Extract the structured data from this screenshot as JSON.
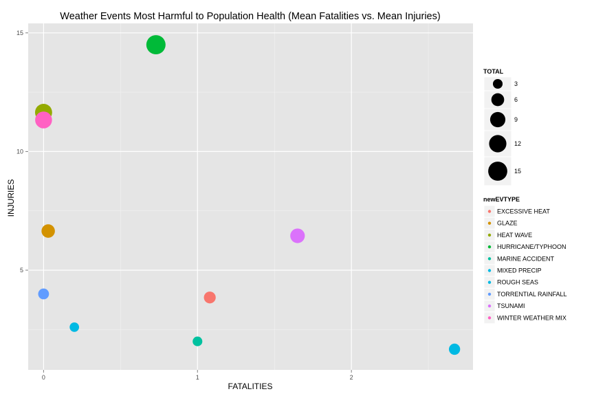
{
  "chart_data": {
    "type": "scatter",
    "title": "Weather Events Most Harmful to Population Health (Mean Fatalities vs. Mean Injuries)",
    "xlabel": "FATALITIES",
    "ylabel": "INJURIES",
    "xlim": [
      -0.1,
      2.79
    ],
    "ylim": [
      0.8,
      15.4
    ],
    "xticks": [
      0,
      1,
      2
    ],
    "yticks": [
      5,
      10,
      15
    ],
    "grid": true,
    "background": "#e5e5e5",
    "size_legend": {
      "title": "TOTAL",
      "values": [
        3,
        6,
        9,
        12,
        15
      ]
    },
    "color_legend": {
      "title": "newEVTYPE",
      "placement": "right"
    },
    "series": [
      {
        "name": "EXCESSIVE HEAT",
        "color": "#F8766D",
        "x": 1.08,
        "y": 3.85,
        "total": 4.93
      },
      {
        "name": "GLAZE",
        "color": "#D39200",
        "x": 0.03,
        "y": 6.65,
        "total": 6.68
      },
      {
        "name": "HEAT WAVE",
        "color": "#93AA00",
        "x": 0.0,
        "y": 11.65,
        "total": 11.65
      },
      {
        "name": "HURRICANE/TYPHOON",
        "color": "#00BA38",
        "x": 0.73,
        "y": 14.5,
        "total": 15.23
      },
      {
        "name": "MARINE ACCIDENT",
        "color": "#00C19F",
        "x": 1.0,
        "y": 2.0,
        "total": 3.0
      },
      {
        "name": "MIXED PRECIP",
        "color": "#00B9E3",
        "x": 0.2,
        "y": 2.6,
        "total": 2.8
      },
      {
        "name": "ROUGH SEAS",
        "color": "#00B9E3",
        "x": 2.67,
        "y": 1.67,
        "total": 4.33
      },
      {
        "name": "TORRENTIAL RAINFALL",
        "color": "#619CFF",
        "x": 0.0,
        "y": 4.0,
        "total": 4.0
      },
      {
        "name": "TSUNAMI",
        "color": "#DB72FB",
        "x": 1.65,
        "y": 6.45,
        "total": 8.1
      },
      {
        "name": "WINTER WEATHER MIX",
        "color": "#FF61C3",
        "x": 0.0,
        "y": 11.33,
        "total": 11.33
      }
    ]
  }
}
